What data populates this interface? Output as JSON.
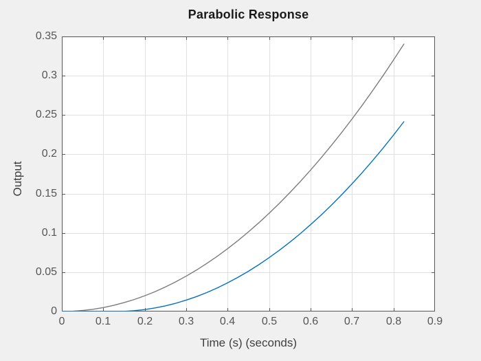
{
  "figure": {
    "background": "#F0F0F0",
    "plot_background": "#FFFFFF",
    "title_color": "#1A1A1A",
    "label_color": "#3F3F3F",
    "tick_label_color": "#555555"
  },
  "chart_data": {
    "type": "line",
    "title": "Parabolic Response",
    "xlabel": "Time (s) (seconds)",
    "ylabel": "Output",
    "xlim": [
      0,
      0.9
    ],
    "ylim": [
      0,
      0.35
    ],
    "grid": true,
    "legend": "none",
    "box": true,
    "tick_direction": "in",
    "axes_color": "#565656",
    "grid_color": "#E0E0E0",
    "xticks": [
      {
        "v": 0,
        "label": "0"
      },
      {
        "v": 0.1,
        "label": "0.1"
      },
      {
        "v": 0.2,
        "label": "0.2"
      },
      {
        "v": 0.3,
        "label": "0.3"
      },
      {
        "v": 0.4,
        "label": "0.4"
      },
      {
        "v": 0.5,
        "label": "0.5"
      },
      {
        "v": 0.6,
        "label": "0.6"
      },
      {
        "v": 0.7,
        "label": "0.7"
      },
      {
        "v": 0.8,
        "label": "0.8"
      },
      {
        "v": 0.9,
        "label": "0.9"
      }
    ],
    "yticks": [
      {
        "v": 0,
        "label": "0"
      },
      {
        "v": 0.05,
        "label": "0.05"
      },
      {
        "v": 0.1,
        "label": "0.1"
      },
      {
        "v": 0.15,
        "label": "0.15"
      },
      {
        "v": 0.2,
        "label": "0.2"
      },
      {
        "v": 0.25,
        "label": "0.25"
      },
      {
        "v": 0.3,
        "label": "0.3"
      },
      {
        "v": 0.35,
        "label": "0.35"
      }
    ],
    "series": [
      {
        "name": "series-gray",
        "color": "#7B7B7B",
        "x": [
          0,
          0.025,
          0.05,
          0.075,
          0.1,
          0.125,
          0.15,
          0.175,
          0.2,
          0.225,
          0.25,
          0.275,
          0.3,
          0.325,
          0.35,
          0.375,
          0.4,
          0.425,
          0.45,
          0.475,
          0.5,
          0.525,
          0.55,
          0.575,
          0.6,
          0.625,
          0.65,
          0.675,
          0.7,
          0.725,
          0.75,
          0.775,
          0.8,
          0.825
        ],
        "y": [
          0,
          0.0003,
          0.0013,
          0.0028,
          0.005,
          0.0078,
          0.0113,
          0.0153,
          0.02,
          0.0253,
          0.0313,
          0.0378,
          0.045,
          0.0528,
          0.0613,
          0.0703,
          0.08,
          0.0903,
          0.1013,
          0.1128,
          0.125,
          0.1378,
          0.1513,
          0.1653,
          0.18,
          0.1953,
          0.2113,
          0.2278,
          0.245,
          0.2628,
          0.2813,
          0.3003,
          0.32,
          0.3403
        ]
      },
      {
        "name": "series-blue",
        "color": "#0072BD",
        "x": [
          0,
          0.025,
          0.05,
          0.075,
          0.1,
          0.125,
          0.15,
          0.175,
          0.2,
          0.225,
          0.25,
          0.275,
          0.3,
          0.325,
          0.35,
          0.375,
          0.4,
          0.425,
          0.45,
          0.475,
          0.5,
          0.525,
          0.55,
          0.575,
          0.6,
          0.625,
          0.65,
          0.675,
          0.7,
          0.725,
          0.75,
          0.775,
          0.8,
          0.825
        ],
        "y": [
          0,
          0,
          0,
          0,
          0,
          0,
          0.0002,
          0.001,
          0.0025,
          0.0045,
          0.0072,
          0.0105,
          0.0145,
          0.019,
          0.0242,
          0.03,
          0.0365,
          0.0435,
          0.0512,
          0.0595,
          0.0685,
          0.078,
          0.0882,
          0.099,
          0.1105,
          0.1225,
          0.1352,
          0.1485,
          0.1625,
          0.177,
          0.1922,
          0.208,
          0.2245,
          0.2415
        ]
      }
    ]
  }
}
